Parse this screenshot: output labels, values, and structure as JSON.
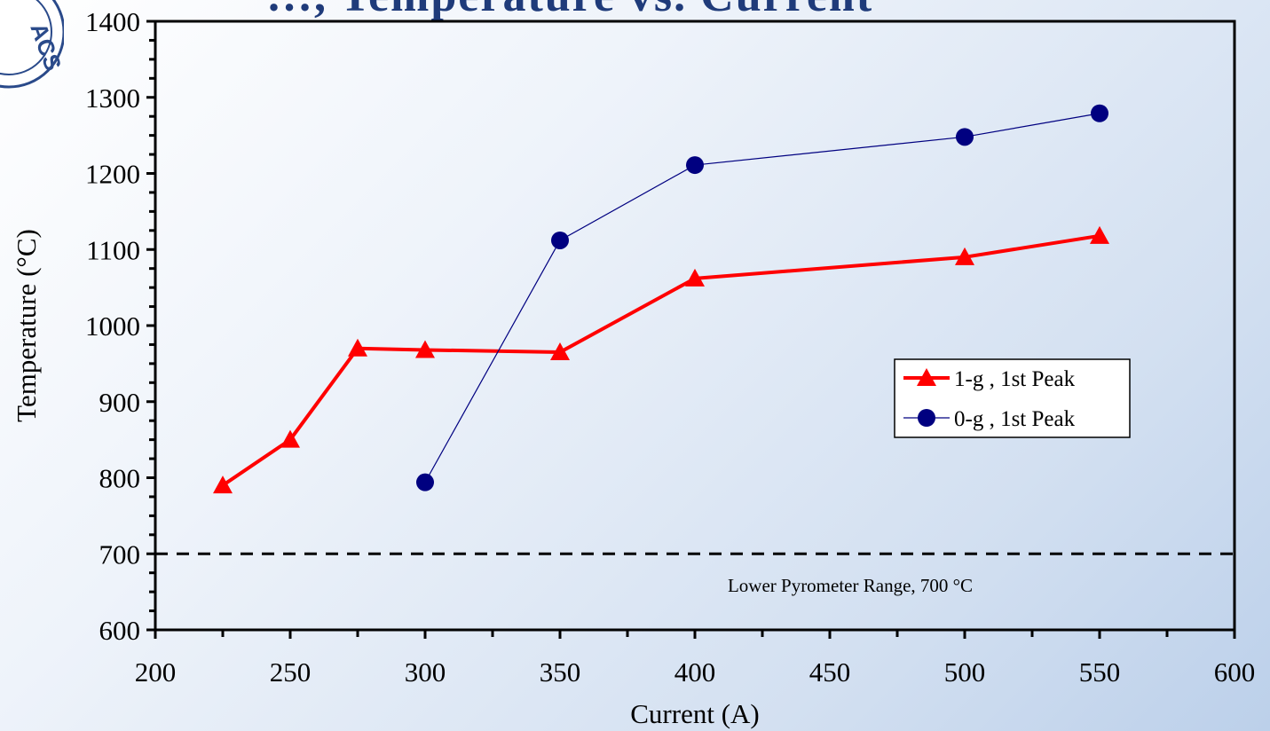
{
  "slide": {
    "title_fragment": "…, Temperature vs. Current"
  },
  "chart_data": {
    "type": "line",
    "title": "",
    "xlabel": "Current (A)",
    "ylabel": "Temperature (°C)",
    "xlim": [
      200,
      600
    ],
    "ylim": [
      600,
      1400
    ],
    "xticks": [
      200,
      250,
      300,
      350,
      400,
      450,
      500,
      550,
      600
    ],
    "yticks": [
      600,
      700,
      800,
      900,
      1000,
      1100,
      1200,
      1300,
      1400
    ],
    "grid": false,
    "legend_position": "right-middle",
    "series": [
      {
        "name": "1-g , 1st Peak",
        "color": "#ff0000",
        "marker": "triangle",
        "x": [
          225,
          250,
          275,
          300,
          350,
          400,
          500,
          550
        ],
        "y": [
          790,
          850,
          970,
          968,
          965,
          1062,
          1090,
          1118
        ]
      },
      {
        "name": "0-g , 1st Peak",
        "color": "#000080",
        "marker": "circle",
        "x": [
          300,
          350,
          400,
          500,
          550
        ],
        "y": [
          794,
          1112,
          1211,
          1248,
          1279
        ]
      }
    ],
    "reference_line": {
      "y": 700,
      "style": "dashed",
      "color": "#000000",
      "label": "Lower Pyrometer Range, 700 °C"
    }
  }
}
